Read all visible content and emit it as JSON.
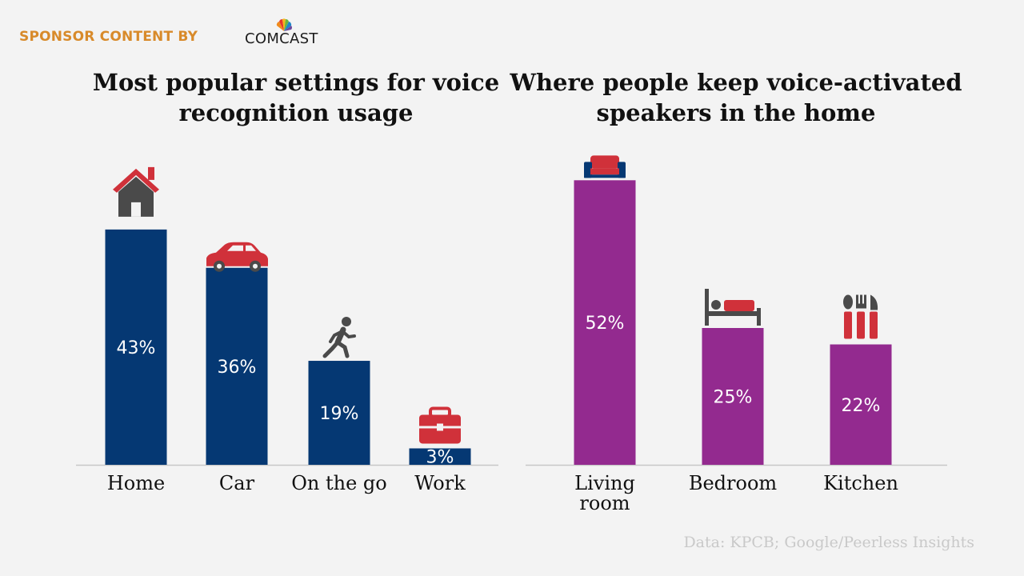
{
  "header": {
    "sponsor_label": "SPONSOR CONTENT BY",
    "brand_name": "COMCAST",
    "brand_icon": "peacock-logo-icon"
  },
  "source": "Data: KPCB; Google/Peerless Insights",
  "colors": {
    "left_bars": "#053873",
    "right_bars": "#932a8f",
    "icon_red": "#d0313a",
    "icon_gray": "#4a4a4a"
  },
  "chart_data": [
    {
      "type": "bar",
      "title": "Most popular settings for voice recognition usage",
      "categories": [
        "Home",
        "Car",
        "On the go",
        "Work"
      ],
      "values": [
        43,
        36,
        19,
        3
      ],
      "value_labels": [
        "43%",
        "36%",
        "19%",
        "3%"
      ],
      "icons": [
        "house-icon",
        "car-icon",
        "walking-person-icon",
        "briefcase-icon"
      ],
      "xlabel": "",
      "ylabel": "",
      "unit": "%",
      "ylim": [
        0,
        60
      ],
      "grid": false,
      "legend": "none",
      "color": "#053873"
    },
    {
      "type": "bar",
      "title": "Where people keep voice-activated speakers in the home",
      "categories": [
        "Living room",
        "Bedroom",
        "Kitchen"
      ],
      "values": [
        52,
        25,
        22
      ],
      "value_labels": [
        "52%",
        "25%",
        "22%"
      ],
      "icons": [
        "sofa-icon",
        "bed-icon",
        "utensils-icon"
      ],
      "xlabel": "",
      "ylabel": "",
      "unit": "%",
      "ylim": [
        0,
        60
      ],
      "grid": false,
      "legend": "none",
      "color": "#932a8f"
    }
  ]
}
